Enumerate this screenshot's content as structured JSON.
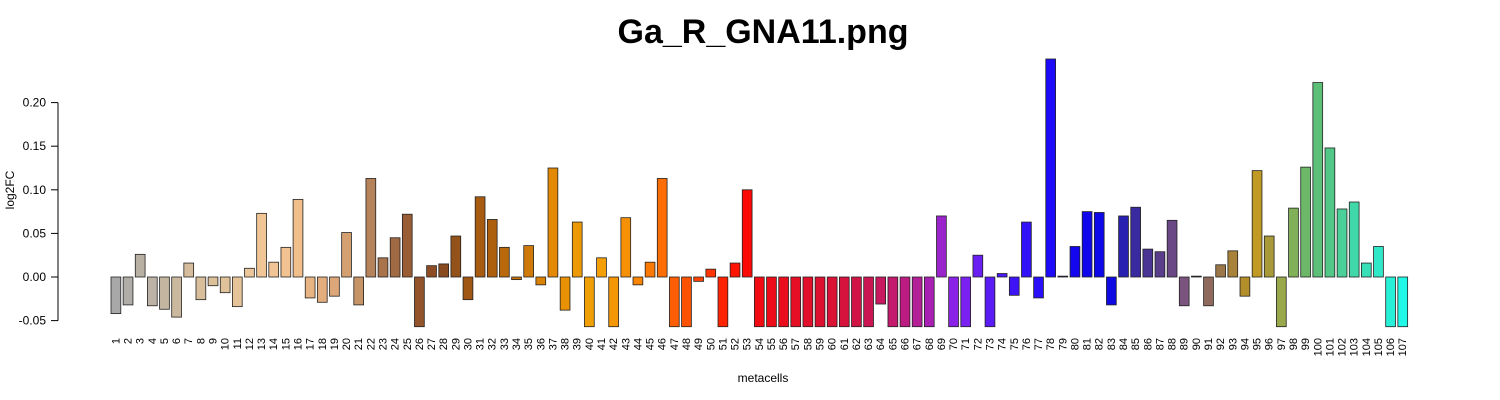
{
  "chart_data": {
    "type": "bar",
    "title": "Ga_R_GNA11.png",
    "xlabel": "metacells",
    "ylabel": "log2FC",
    "ylim": [
      -0.06,
      0.25
    ],
    "yticks": [
      -0.05,
      0.0,
      0.05,
      0.1,
      0.15,
      0.2
    ],
    "ytick_labels": [
      "-0.05",
      "0.00",
      "0.05",
      "0.10",
      "0.15",
      "0.20"
    ],
    "grid": false,
    "legend": "none",
    "categories": [
      "1",
      "2",
      "3",
      "4",
      "5",
      "6",
      "7",
      "8",
      "9",
      "10",
      "11",
      "12",
      "13",
      "14",
      "15",
      "16",
      "17",
      "18",
      "19",
      "20",
      "21",
      "22",
      "23",
      "24",
      "25",
      "26",
      "27",
      "28",
      "29",
      "30",
      "31",
      "32",
      "33",
      "34",
      "35",
      "36",
      "37",
      "38",
      "39",
      "40",
      "41",
      "42",
      "43",
      "44",
      "45",
      "46",
      "47",
      "48",
      "49",
      "50",
      "51",
      "52",
      "53",
      "54",
      "55",
      "56",
      "57",
      "58",
      "59",
      "60",
      "61",
      "62",
      "63",
      "64",
      "65",
      "66",
      "67",
      "68",
      "69",
      "70",
      "71",
      "72",
      "73",
      "74",
      "75",
      "76",
      "77",
      "78",
      "79",
      "80",
      "81",
      "82",
      "83",
      "84",
      "85",
      "86",
      "87",
      "88",
      "89",
      "90",
      "91",
      "92",
      "93",
      "94",
      "95",
      "96",
      "97",
      "98",
      "99",
      "100",
      "101",
      "102",
      "103",
      "104",
      "105",
      "106",
      "107"
    ],
    "values": [
      -0.042,
      -0.032,
      0.026,
      -0.033,
      -0.037,
      -0.046,
      0.016,
      -0.026,
      -0.01,
      -0.018,
      -0.034,
      0.01,
      0.073,
      0.017,
      0.034,
      0.089,
      -0.024,
      -0.029,
      -0.022,
      0.051,
      -0.032,
      0.113,
      0.022,
      0.045,
      0.072,
      -0.057,
      0.013,
      0.015,
      0.047,
      -0.026,
      0.092,
      0.066,
      0.034,
      -0.003,
      0.036,
      -0.009,
      0.125,
      -0.038,
      0.063,
      -0.057,
      0.022,
      -0.057,
      0.068,
      -0.009,
      0.017,
      0.113,
      -0.057,
      -0.057,
      -0.005,
      0.009,
      -0.057,
      0.016,
      0.1,
      -0.057,
      -0.057,
      -0.057,
      -0.057,
      -0.057,
      -0.057,
      -0.057,
      -0.057,
      -0.057,
      -0.057,
      -0.031,
      -0.057,
      -0.057,
      -0.057,
      -0.057,
      0.07,
      -0.057,
      -0.057,
      0.025,
      -0.057,
      0.004,
      -0.021,
      0.063,
      -0.024,
      0.25,
      0.001,
      0.035,
      0.075,
      0.074,
      -0.032,
      0.07,
      0.08,
      0.032,
      0.029,
      0.065,
      -0.033,
      0.001,
      -0.033,
      0.014,
      0.03,
      -0.022,
      0.122,
      0.047,
      -0.057,
      0.079,
      0.126,
      0.223,
      0.148,
      0.078,
      0.086,
      0.016,
      0.035,
      -0.057,
      -0.057
    ],
    "bar_colors": [
      "#a8a8a8",
      "#b0aca8",
      "#b8b0a3",
      "#bcb3a6",
      "#c4b5a0",
      "#cbb99f",
      "#d4bc9c",
      "#d8be9b",
      "#dcc09a",
      "#e0c29a",
      "#e5c49a",
      "#eac69a",
      "#f0c696",
      "#f0c494",
      "#f2c290",
      "#f0bf8c",
      "#e9b483",
      "#e3ad7d",
      "#dca678",
      "#d5a070",
      "#c69466",
      "#b6825a",
      "#a9734c",
      "#a06a44",
      "#9a5c34",
      "#93532b",
      "#8e4c24",
      "#8a4a1f",
      "#93521a",
      "#a05714",
      "#a75b10",
      "#ad5f0d",
      "#b9680b",
      "#c7720a",
      "#cf7a08",
      "#d98206",
      "#e38906",
      "#e89105",
      "#ec9905",
      "#f0a005",
      "#f39f05",
      "#f39804",
      "#f69004",
      "#f88504",
      "#fa7904",
      "#fc6d03",
      "#fd5e03",
      "#fe5203",
      "#fe4402",
      "#ff3402",
      "#ff2401",
      "#ff1501",
      "#fb0a05",
      "#f20b12",
      "#ee0c18",
      "#ea0d1e",
      "#e60e24",
      "#e20f2a",
      "#de1030",
      "#da1236",
      "#d6133c",
      "#d01446",
      "#cc1553",
      "#c8185f",
      "#c31a6e",
      "#bc1c82",
      "#b41f98",
      "#a821b3",
      "#9a24cc",
      "#8a21e6",
      "#7a20f0",
      "#6a1ff2",
      "#5a1cf4",
      "#4b18f6",
      "#3e14f7",
      "#3212f8",
      "#2a10f8",
      "#1c0af8",
      "#1808f5",
      "#1407f0",
      "#1006ec",
      "#0e08e8",
      "#0f0ae4",
      "#2820b0",
      "#3a2aa0",
      "#4a3494",
      "#5a3e8c",
      "#6a4886",
      "#7a547e",
      "#865e70",
      "#8f6a5c",
      "#9a7648",
      "#a88238",
      "#b48e2a",
      "#c09a24",
      "#a89a38",
      "#98a84a",
      "#80b058",
      "#6cb868",
      "#5cc078",
      "#52c888",
      "#4ad098",
      "#40d8a8",
      "#38e0b8",
      "#30e8c8",
      "#28f0d8",
      "#20f8e8"
    ]
  }
}
